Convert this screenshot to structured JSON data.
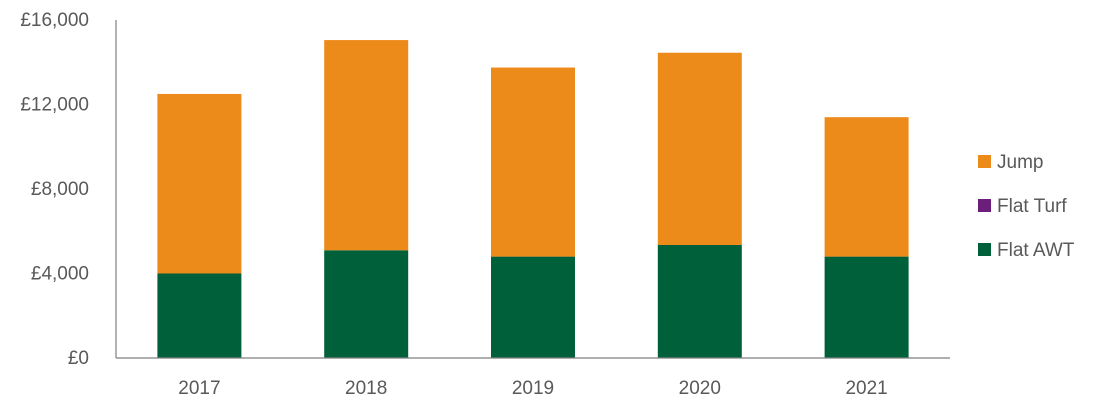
{
  "chart_data": {
    "type": "bar",
    "stacked": true,
    "title": "",
    "xlabel": "",
    "ylabel": "",
    "categories": [
      "2017",
      "2018",
      "2019",
      "2020",
      "2021"
    ],
    "series": [
      {
        "name": "Flat AWT",
        "color": "#00603a",
        "values": [
          4000,
          5100,
          4800,
          5350,
          4800
        ]
      },
      {
        "name": "Flat Turf",
        "color": "#6b1f7a",
        "values": [
          0,
          0,
          0,
          0,
          0
        ]
      },
      {
        "name": "Jump",
        "color": "#ed8b1a",
        "values": [
          8500,
          9950,
          8950,
          9100,
          6600
        ]
      }
    ],
    "ylim": [
      0,
      16000
    ],
    "yticks": [
      0,
      4000,
      8000,
      12000,
      16000
    ],
    "ytick_labels": [
      "£0",
      "£4,000",
      "£8,000",
      "£12,000",
      "£16,000"
    ],
    "grid": false,
    "legend_position": "right",
    "legend_order": [
      "Jump",
      "Flat Turf",
      "Flat AWT"
    ],
    "axis_color": "#7f7f7f"
  }
}
